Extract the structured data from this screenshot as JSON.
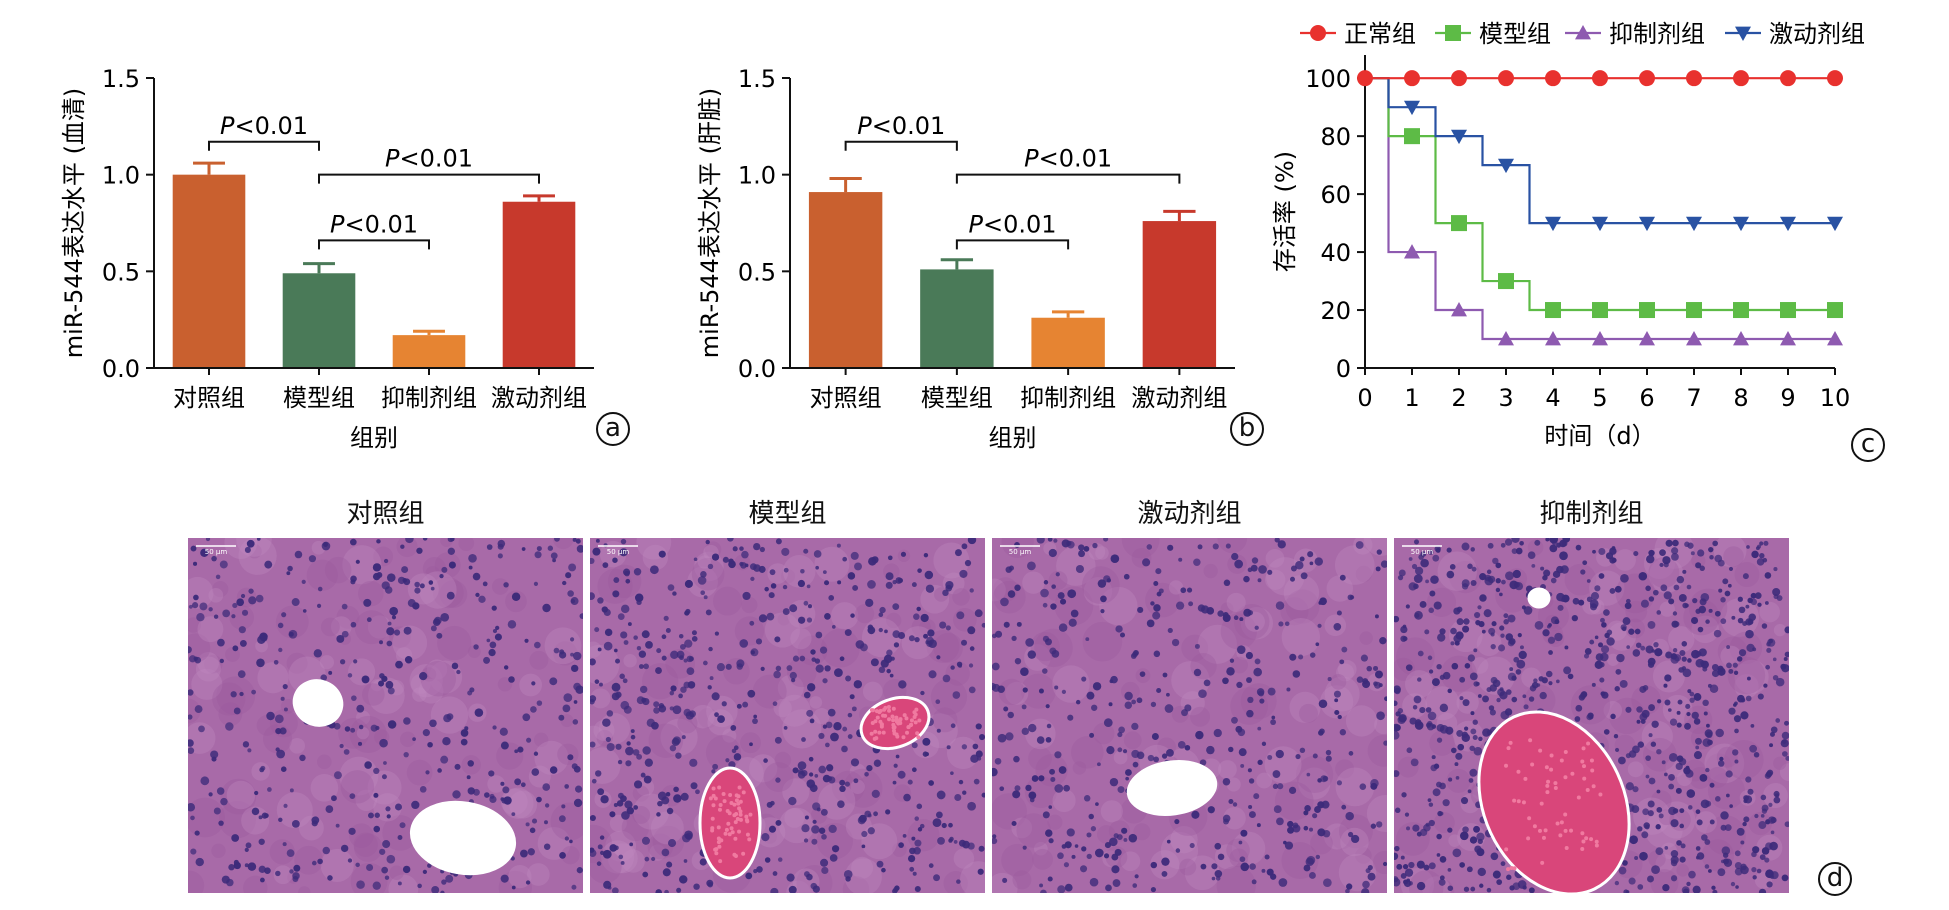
{
  "chart_data": [
    {
      "panel": "a",
      "type": "bar",
      "categories": [
        "对照组",
        "模型组",
        "抑制剂组",
        "激动剂组"
      ],
      "values": [
        1.0,
        0.49,
        0.17,
        0.86
      ],
      "errors": [
        0.06,
        0.05,
        0.02,
        0.03
      ],
      "colors": [
        "#c9602f",
        "#4a7a58",
        "#e68432",
        "#c7392c"
      ],
      "xlabel": "组别",
      "ylabel": "miR-544表达水平 (血清)",
      "ylim": [
        0,
        1.5
      ],
      "yticks": [
        "0.0",
        "0.5",
        "1.0",
        "1.5"
      ],
      "annotations": [
        {
          "from": 0,
          "to": 1,
          "level": 1.17,
          "text": "P<0.01"
        },
        {
          "from": 1,
          "to": 3,
          "level": 1.0,
          "text": "P<0.01"
        },
        {
          "from": 1,
          "to": 2,
          "level": 0.66,
          "text": "P<0.01"
        }
      ]
    },
    {
      "panel": "b",
      "type": "bar",
      "categories": [
        "对照组",
        "模型组",
        "抑制剂组",
        "激动剂组"
      ],
      "values": [
        0.91,
        0.51,
        0.26,
        0.76
      ],
      "errors": [
        0.07,
        0.05,
        0.03,
        0.05
      ],
      "colors": [
        "#c9602f",
        "#4a7a58",
        "#e68432",
        "#c7392c"
      ],
      "xlabel": "组别",
      "ylabel": "miR-544表达水平 (肝脏)",
      "ylim": [
        0,
        1.5
      ],
      "yticks": [
        "0.0",
        "0.5",
        "1.0",
        "1.5"
      ],
      "annotations": [
        {
          "from": 0,
          "to": 1,
          "level": 1.17,
          "text": "P<0.01"
        },
        {
          "from": 1,
          "to": 3,
          "level": 1.0,
          "text": "P<0.01"
        },
        {
          "from": 1,
          "to": 2,
          "level": 0.66,
          "text": "P<0.01"
        }
      ]
    },
    {
      "panel": "c",
      "type": "line",
      "xlabel": "时间（d）",
      "ylabel": "存活率 (%)",
      "xlim": [
        0,
        10
      ],
      "ylim": [
        0,
        100
      ],
      "xticks": [
        0,
        1,
        2,
        3,
        4,
        5,
        6,
        7,
        8,
        9,
        10
      ],
      "yticks": [
        0,
        20,
        40,
        60,
        80,
        100
      ],
      "legend_position": "top",
      "x": [
        0,
        1,
        2,
        3,
        4,
        5,
        6,
        7,
        8,
        9,
        10
      ],
      "series": [
        {
          "name": "正常组",
          "color": "#e8312e",
          "marker": "circle",
          "values": [
            100,
            100,
            100,
            100,
            100,
            100,
            100,
            100,
            100,
            100,
            100
          ],
          "steps": [
            [
              0,
              100
            ],
            [
              10,
              100
            ]
          ]
        },
        {
          "name": "模型组",
          "color": "#5dbb46",
          "marker": "square",
          "values": [
            100,
            80,
            50,
            30,
            20,
            20,
            20,
            20,
            20,
            20,
            20
          ],
          "steps": [
            [
              0,
              100
            ],
            [
              0.5,
              80
            ],
            [
              1.5,
              50
            ],
            [
              2.5,
              30
            ],
            [
              3.5,
              20
            ],
            [
              10,
              20
            ]
          ]
        },
        {
          "name": "抑制剂组",
          "color": "#8e5ab0",
          "marker": "triangle-up",
          "values": [
            100,
            40,
            20,
            10,
            10,
            10,
            10,
            10,
            10,
            10,
            10
          ],
          "steps": [
            [
              0,
              100
            ],
            [
              0.5,
              40
            ],
            [
              1.5,
              20
            ],
            [
              2.5,
              10
            ],
            [
              10,
              10
            ]
          ]
        },
        {
          "name": "激动剂组",
          "color": "#2952a3",
          "marker": "triangle-down",
          "values": [
            100,
            90,
            80,
            70,
            50,
            50,
            50,
            50,
            50,
            50,
            50
          ],
          "steps": [
            [
              0,
              100
            ],
            [
              0.5,
              90
            ],
            [
              1.5,
              80
            ],
            [
              2.5,
              70
            ],
            [
              3.5,
              50
            ],
            [
              10,
              50
            ]
          ]
        }
      ]
    }
  ],
  "histology": {
    "panels": [
      {
        "title": "对照组",
        "scale_label": "50 μm"
      },
      {
        "title": "模型组",
        "scale_label": "50 μm"
      },
      {
        "title": "激动剂组",
        "scale_label": "50 μm"
      },
      {
        "title": "抑制剂组",
        "scale_label": "50 μm"
      }
    ],
    "background_color": "#a86aa8",
    "nucleus_color": "#3d2b7a",
    "blood_color": "#d9467a"
  },
  "panel_labels": [
    "a",
    "b",
    "c",
    "d"
  ]
}
